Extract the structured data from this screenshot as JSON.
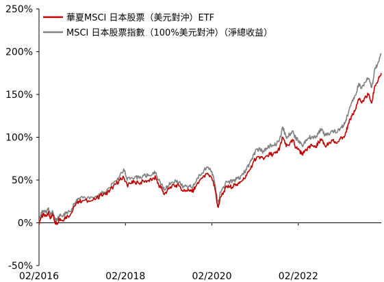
{
  "chart_data": {
    "type": "line",
    "title": "",
    "xlabel": "",
    "ylabel": "",
    "x_ticks": [
      "02/2016",
      "02/2018",
      "02/2020",
      "02/2022"
    ],
    "y_ticks": [
      "-50%",
      "0%",
      "50%",
      "100%",
      "150%",
      "200%",
      "250%"
    ],
    "ylim": [
      -50,
      250
    ],
    "xlim": [
      2016.08,
      2024.0
    ],
    "legend": "top-left",
    "grid": false,
    "series": [
      {
        "name": "華夏MSCI 日本股票（美元對沖）ETF",
        "color": "#c00000",
        "points": [
          [
            2016.08,
            0
          ],
          [
            2016.13,
            6
          ],
          [
            2016.18,
            9
          ],
          [
            2016.24,
            8
          ],
          [
            2016.29,
            12
          ],
          [
            2016.35,
            5
          ],
          [
            2016.4,
            9
          ],
          [
            2016.45,
            1
          ],
          [
            2016.49,
            -2
          ],
          [
            2016.55,
            5
          ],
          [
            2016.62,
            3
          ],
          [
            2016.7,
            7
          ],
          [
            2016.8,
            9
          ],
          [
            2016.92,
            20
          ],
          [
            2017.0,
            25
          ],
          [
            2017.1,
            26
          ],
          [
            2017.25,
            25
          ],
          [
            2017.4,
            28
          ],
          [
            2017.5,
            32
          ],
          [
            2017.62,
            33
          ],
          [
            2017.72,
            38
          ],
          [
            2017.85,
            45
          ],
          [
            2017.95,
            50
          ],
          [
            2018.04,
            53
          ],
          [
            2018.12,
            44
          ],
          [
            2018.2,
            46
          ],
          [
            2018.3,
            48
          ],
          [
            2018.4,
            46
          ],
          [
            2018.5,
            49
          ],
          [
            2018.6,
            49
          ],
          [
            2018.7,
            50
          ],
          [
            2018.78,
            53
          ],
          [
            2018.85,
            44
          ],
          [
            2018.92,
            40
          ],
          [
            2018.98,
            33
          ],
          [
            2019.05,
            38
          ],
          [
            2019.15,
            42
          ],
          [
            2019.25,
            44
          ],
          [
            2019.33,
            43
          ],
          [
            2019.4,
            37
          ],
          [
            2019.48,
            38
          ],
          [
            2019.55,
            38
          ],
          [
            2019.62,
            36
          ],
          [
            2019.7,
            42
          ],
          [
            2019.8,
            50
          ],
          [
            2019.9,
            55
          ],
          [
            2020.0,
            56
          ],
          [
            2020.08,
            52
          ],
          [
            2020.15,
            40
          ],
          [
            2020.2,
            23
          ],
          [
            2020.23,
            18
          ],
          [
            2020.28,
            30
          ],
          [
            2020.35,
            36
          ],
          [
            2020.42,
            42
          ],
          [
            2020.5,
            42
          ],
          [
            2020.58,
            43
          ],
          [
            2020.65,
            45
          ],
          [
            2020.72,
            46
          ],
          [
            2020.8,
            50
          ],
          [
            2020.88,
            55
          ],
          [
            2020.96,
            62
          ],
          [
            2021.05,
            72
          ],
          [
            2021.12,
            77
          ],
          [
            2021.2,
            76
          ],
          [
            2021.28,
            74
          ],
          [
            2021.35,
            78
          ],
          [
            2021.42,
            80
          ],
          [
            2021.5,
            80
          ],
          [
            2021.58,
            82
          ],
          [
            2021.65,
            88
          ],
          [
            2021.72,
            100
          ],
          [
            2021.8,
            89
          ],
          [
            2021.88,
            92
          ],
          [
            2021.96,
            96
          ],
          [
            2022.02,
            88
          ],
          [
            2022.1,
            85
          ],
          [
            2022.18,
            79
          ],
          [
            2022.25,
            86
          ],
          [
            2022.32,
            88
          ],
          [
            2022.4,
            90
          ],
          [
            2022.48,
            88
          ],
          [
            2022.55,
            94
          ],
          [
            2022.62,
            98
          ],
          [
            2022.7,
            90
          ],
          [
            2022.78,
            92
          ],
          [
            2022.88,
            96
          ],
          [
            2022.96,
            93
          ],
          [
            2023.05,
            98
          ],
          [
            2023.12,
            100
          ],
          [
            2023.18,
            106
          ],
          [
            2023.25,
            116
          ],
          [
            2023.32,
            125
          ],
          [
            2023.4,
            132
          ],
          [
            2023.48,
            145
          ],
          [
            2023.55,
            140
          ],
          [
            2023.62,
            146
          ],
          [
            2023.7,
            150
          ],
          [
            2023.78,
            140
          ],
          [
            2023.85,
            160
          ],
          [
            2023.92,
            165
          ],
          [
            2024.0,
            175
          ]
        ]
      },
      {
        "name": "MSCI 日本股票指數（100%美元對沖）（淨總收益）",
        "color": "#808080",
        "points": [
          [
            2016.08,
            2
          ],
          [
            2016.13,
            12
          ],
          [
            2016.18,
            14
          ],
          [
            2016.24,
            13
          ],
          [
            2016.29,
            17
          ],
          [
            2016.35,
            9
          ],
          [
            2016.4,
            13
          ],
          [
            2016.45,
            5
          ],
          [
            2016.49,
            2
          ],
          [
            2016.55,
            9
          ],
          [
            2016.62,
            7
          ],
          [
            2016.7,
            11
          ],
          [
            2016.8,
            13
          ],
          [
            2016.92,
            24
          ],
          [
            2017.0,
            28
          ],
          [
            2017.1,
            29
          ],
          [
            2017.25,
            28
          ],
          [
            2017.4,
            31
          ],
          [
            2017.5,
            35
          ],
          [
            2017.62,
            36
          ],
          [
            2017.72,
            41
          ],
          [
            2017.85,
            49
          ],
          [
            2017.95,
            55
          ],
          [
            2018.04,
            63
          ],
          [
            2018.12,
            50
          ],
          [
            2018.2,
            52
          ],
          [
            2018.3,
            54
          ],
          [
            2018.4,
            52
          ],
          [
            2018.5,
            55
          ],
          [
            2018.6,
            55
          ],
          [
            2018.7,
            56
          ],
          [
            2018.78,
            59
          ],
          [
            2018.85,
            50
          ],
          [
            2018.92,
            45
          ],
          [
            2018.98,
            38
          ],
          [
            2019.05,
            43
          ],
          [
            2019.15,
            47
          ],
          [
            2019.25,
            49
          ],
          [
            2019.33,
            48
          ],
          [
            2019.4,
            42
          ],
          [
            2019.48,
            43
          ],
          [
            2019.55,
            43
          ],
          [
            2019.62,
            41
          ],
          [
            2019.7,
            47
          ],
          [
            2019.8,
            56
          ],
          [
            2019.9,
            62
          ],
          [
            2020.0,
            65
          ],
          [
            2020.08,
            60
          ],
          [
            2020.15,
            46
          ],
          [
            2020.2,
            28
          ],
          [
            2020.23,
            23
          ],
          [
            2020.28,
            36
          ],
          [
            2020.35,
            42
          ],
          [
            2020.42,
            48
          ],
          [
            2020.5,
            48
          ],
          [
            2020.58,
            49
          ],
          [
            2020.65,
            51
          ],
          [
            2020.72,
            52
          ],
          [
            2020.8,
            57
          ],
          [
            2020.88,
            62
          ],
          [
            2020.96,
            70
          ],
          [
            2021.05,
            80
          ],
          [
            2021.12,
            86
          ],
          [
            2021.2,
            85
          ],
          [
            2021.28,
            83
          ],
          [
            2021.35,
            87
          ],
          [
            2021.42,
            90
          ],
          [
            2021.5,
            90
          ],
          [
            2021.58,
            92
          ],
          [
            2021.65,
            98
          ],
          [
            2021.72,
            112
          ],
          [
            2021.8,
            100
          ],
          [
            2021.88,
            103
          ],
          [
            2021.96,
            107
          ],
          [
            2022.02,
            99
          ],
          [
            2022.1,
            96
          ],
          [
            2022.18,
            89
          ],
          [
            2022.25,
            97
          ],
          [
            2022.32,
            99
          ],
          [
            2022.4,
            101
          ],
          [
            2022.48,
            99
          ],
          [
            2022.55,
            106
          ],
          [
            2022.62,
            110
          ],
          [
            2022.7,
            102
          ],
          [
            2022.78,
            104
          ],
          [
            2022.88,
            108
          ],
          [
            2022.96,
            105
          ],
          [
            2023.05,
            110
          ],
          [
            2023.12,
            113
          ],
          [
            2023.18,
            120
          ],
          [
            2023.25,
            131
          ],
          [
            2023.32,
            141
          ],
          [
            2023.4,
            149
          ],
          [
            2023.48,
            163
          ],
          [
            2023.55,
            158
          ],
          [
            2023.62,
            164
          ],
          [
            2023.7,
            169
          ],
          [
            2023.78,
            158
          ],
          [
            2023.85,
            180
          ],
          [
            2023.92,
            186
          ],
          [
            2024.0,
            197
          ]
        ]
      }
    ]
  }
}
